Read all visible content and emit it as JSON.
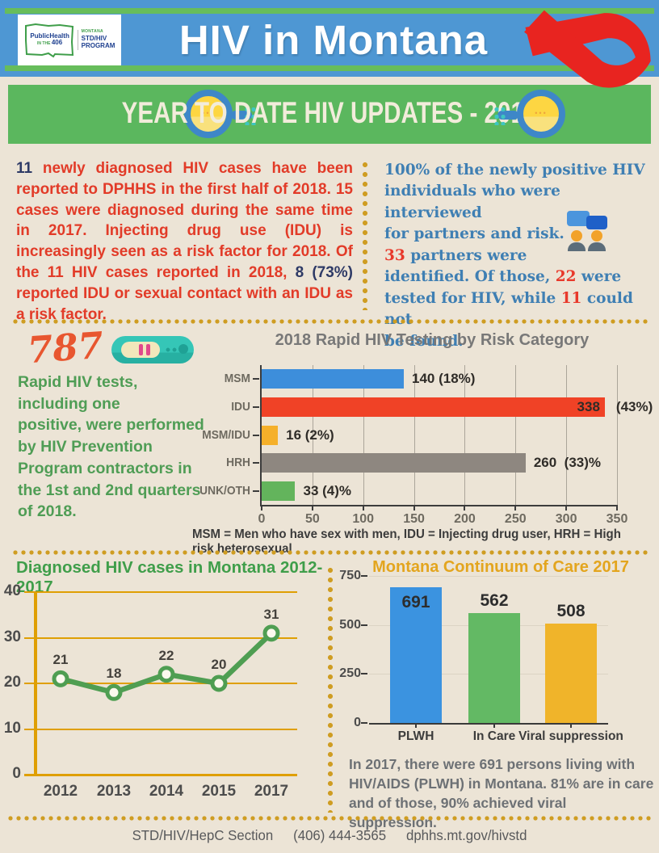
{
  "header": {
    "title": "HIV in Montana",
    "logo": {
      "brand": "PublicHealth",
      "brand_sub_prefix": "IN THE ",
      "brand_sub_number": "406",
      "program_region": "MONTANA",
      "program_line1": "STD/HIV",
      "program_line2": "PROGRAM"
    }
  },
  "banner": {
    "title": "YEAR TO DATE HIV UPDATES - 2018"
  },
  "intro": {
    "left_segments": [
      {
        "t": "11",
        "c": "navy"
      },
      {
        "t": " newly diagnosed HIV cases have been reported to DPHHS in the first half of 2018. 15 cases were diagnosed during the same time in 2017. Injecting drug use (IDU) is increasingly seen as a risk factor for 2018. Of the 11 HIV cases reported in 2018, ",
        "c": "red"
      },
      {
        "t": "8 (73%)",
        "c": "navy"
      },
      {
        "t": " reported IDU or sexual contact with an IDU as a risk factor.",
        "c": "red"
      }
    ],
    "right_lines": [
      [
        {
          "t": "100% of the newly positive HIV",
          "c": "blue"
        }
      ],
      [
        {
          "t": "individuals who were interviewed",
          "c": "blue"
        }
      ],
      [
        {
          "t": "for partners and risk.",
          "c": "blue"
        }
      ],
      [
        {
          "t": "33",
          "c": "rednum"
        },
        {
          "t": " partners were",
          "c": "blue"
        }
      ],
      [
        {
          "t": "identified. Of those, ",
          "c": "blue"
        },
        {
          "t": "22",
          "c": "rednum"
        },
        {
          "t": " were",
          "c": "blue"
        }
      ],
      [
        {
          "t": "tested for HIV, while ",
          "c": "blue"
        },
        {
          "t": "11",
          "c": "rednum"
        },
        {
          "t": " could not",
          "c": "blue"
        }
      ],
      [
        {
          "t": "be found.",
          "c": "blue"
        }
      ]
    ]
  },
  "rapid": {
    "count": "787",
    "lines": [
      "Rapid HIV tests,",
      "including one",
      "positive, were performed",
      "by HIV Prevention",
      "Program contractors in",
      "the 1st and 2nd quarters",
      "of 2018."
    ]
  },
  "chart_data": [
    {
      "id": "risk_testing",
      "type": "bar",
      "orientation": "horizontal",
      "title": "2018 Rapid HIV Testing by Risk Category",
      "xmax": 350,
      "x_ticks": [
        0,
        50,
        100,
        150,
        200,
        250,
        300,
        350
      ],
      "grid": true,
      "bars": [
        {
          "category": "MSM",
          "value": 140,
          "color": "#3d8edb",
          "label_after": "140 (18%)"
        },
        {
          "category": "IDU",
          "value": 338,
          "color": "#f04226",
          "label_in": "338",
          "label_after": "(43%)"
        },
        {
          "category": "MSM/IDU",
          "value": 16,
          "color": "#f5b02a",
          "label_after": "16 (2%)"
        },
        {
          "category": "HRH",
          "value": 260,
          "color": "#8e8780",
          "label_after": "260  (33)%"
        },
        {
          "category": "UNK/OTH",
          "value": 33,
          "color": "#63b45c",
          "label_after": "33 (4)%"
        }
      ],
      "footnote": "MSM = Men who have sex with men, IDU = Injecting drug user, HRH = High risk heterosexual"
    },
    {
      "id": "diagnosed_cases",
      "type": "line",
      "title": "Diagnosed HIV cases in Montana 2012-2017",
      "x": [
        "2012",
        "2013",
        "2014",
        "2015",
        "2017"
      ],
      "y": [
        21,
        18,
        22,
        20,
        31
      ],
      "y_ticks": [
        0,
        10,
        20,
        30,
        40
      ],
      "ymax": 40,
      "line_color": "#4f9e52",
      "axis_color": "#df9f04"
    },
    {
      "id": "continuum_of_care",
      "type": "bar",
      "orientation": "vertical",
      "title": "Montana Continuum of Care 2017",
      "categories": [
        "PLWH",
        "In Care",
        "Viral suppression"
      ],
      "values": [
        691,
        562,
        508
      ],
      "colors": [
        "#3b93e0",
        "#63b964",
        "#f0b42a"
      ],
      "y_ticks": [
        0,
        250,
        500,
        750
      ],
      "ymax": 750
    }
  ],
  "continuum_caption_lines": [
    "In 2017, there were 691 persons living with",
    "HIV/AIDS (PLWH) in Montana. 81% are in care",
    "and of those, 90% achieved viral suppression."
  ],
  "footer": {
    "section": "STD/HIV/HepC Section",
    "phone": "(406) 444-3565",
    "url": "dphhs.mt.gov/hivstd"
  }
}
